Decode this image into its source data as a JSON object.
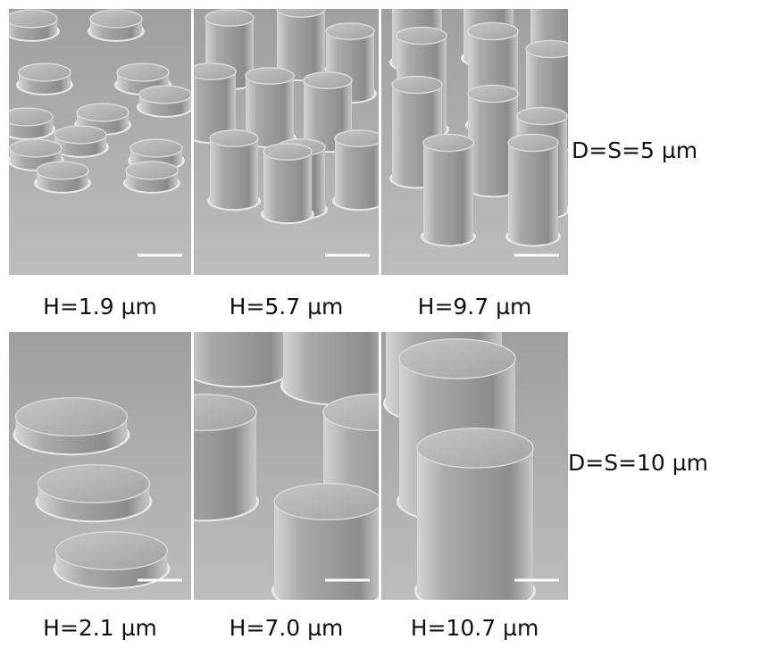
{
  "rows": [
    {
      "label": "D=S=5 µm",
      "panels": [
        {
          "caption": "H=1.9 µm"
        },
        {
          "caption": "H=5.7 µm"
        },
        {
          "caption": "H=9.7 µm"
        }
      ]
    },
    {
      "label": "D=S=10 µm",
      "panels": [
        {
          "caption": "H=2.1 µm"
        },
        {
          "caption": "H=7.0 µm"
        },
        {
          "caption": "H=10.7 µm"
        }
      ]
    }
  ]
}
